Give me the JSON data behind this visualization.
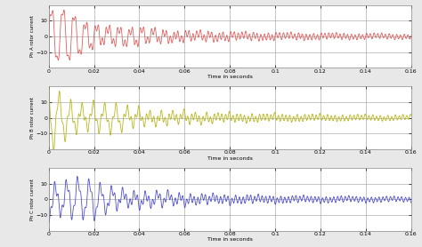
{
  "xlim": [
    0,
    0.16
  ],
  "ylim": [
    -20,
    20
  ],
  "yticks": [
    -10,
    0,
    10
  ],
  "xticks": [
    0,
    0.02,
    0.04,
    0.06,
    0.08,
    0.1,
    0.12,
    0.14,
    0.16
  ],
  "xlabel": "Time in seconds",
  "ylabel1": "Ph A rotor current",
  "ylabel2": "Ph B rotor current",
  "ylabel3": "Ph C rotor current",
  "color1": "#e06060",
  "color2": "#b8b820",
  "color3": "#5050cc",
  "bg_color": "#e8e8e8",
  "plot_bg": "#ffffff",
  "linewidth": 0.6,
  "freq_main": 200,
  "freq_ripple": 600,
  "decay_fast": 35,
  "decay_slow": 8,
  "amplitude_main": 16,
  "amplitude_ripple_steady": 0.9,
  "phase2": 2.094,
  "phase3": 4.189,
  "freq_steady": 50,
  "steady_amp": 0.8,
  "steady_decay": 4
}
